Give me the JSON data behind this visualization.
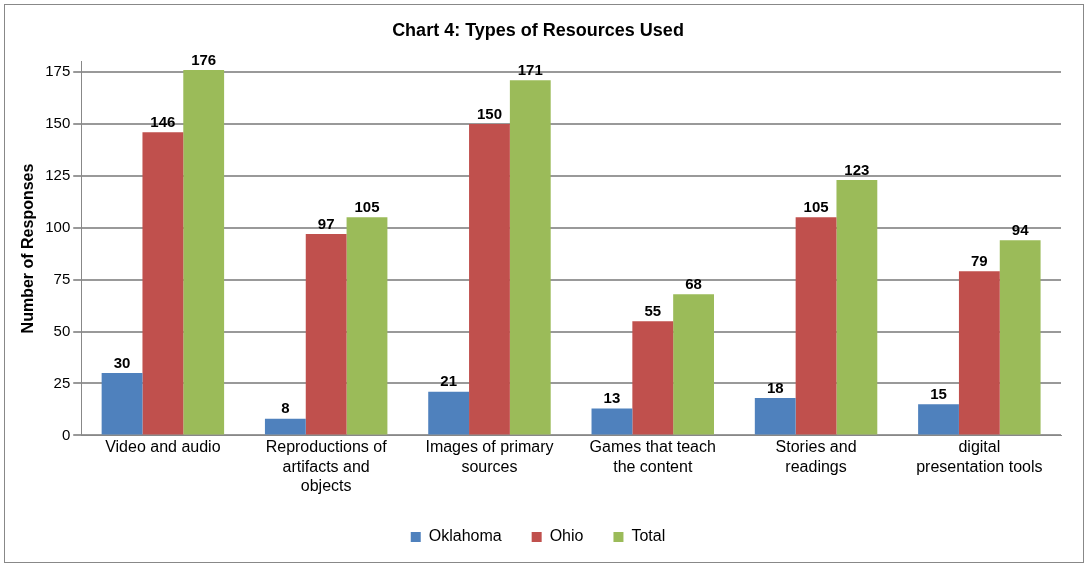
{
  "chart_data": {
    "type": "bar",
    "title": "Chart 4: Types of Resources Used",
    "ylabel": "Number of Responses",
    "categories": [
      "Video and audio",
      "Reproductions of artifacts and objects",
      "Images of primary sources",
      "Games that teach the content",
      "Stories and readings",
      "digital presentation tools"
    ],
    "series": [
      {
        "name": "Oklahoma",
        "color": "#4f81bd",
        "values": [
          30,
          8,
          21,
          13,
          18,
          15
        ]
      },
      {
        "name": "Ohio",
        "color": "#c0504d",
        "values": [
          146,
          97,
          150,
          55,
          105,
          79
        ]
      },
      {
        "name": "Total",
        "color": "#9bbb59",
        "values": [
          176,
          105,
          171,
          68,
          123,
          94
        ]
      }
    ],
    "ylim": [
      0,
      180
    ],
    "yticks": [
      0,
      25,
      50,
      75,
      100,
      125,
      150,
      175
    ],
    "grid": "y",
    "legend": "bottom",
    "data_labels": true
  }
}
